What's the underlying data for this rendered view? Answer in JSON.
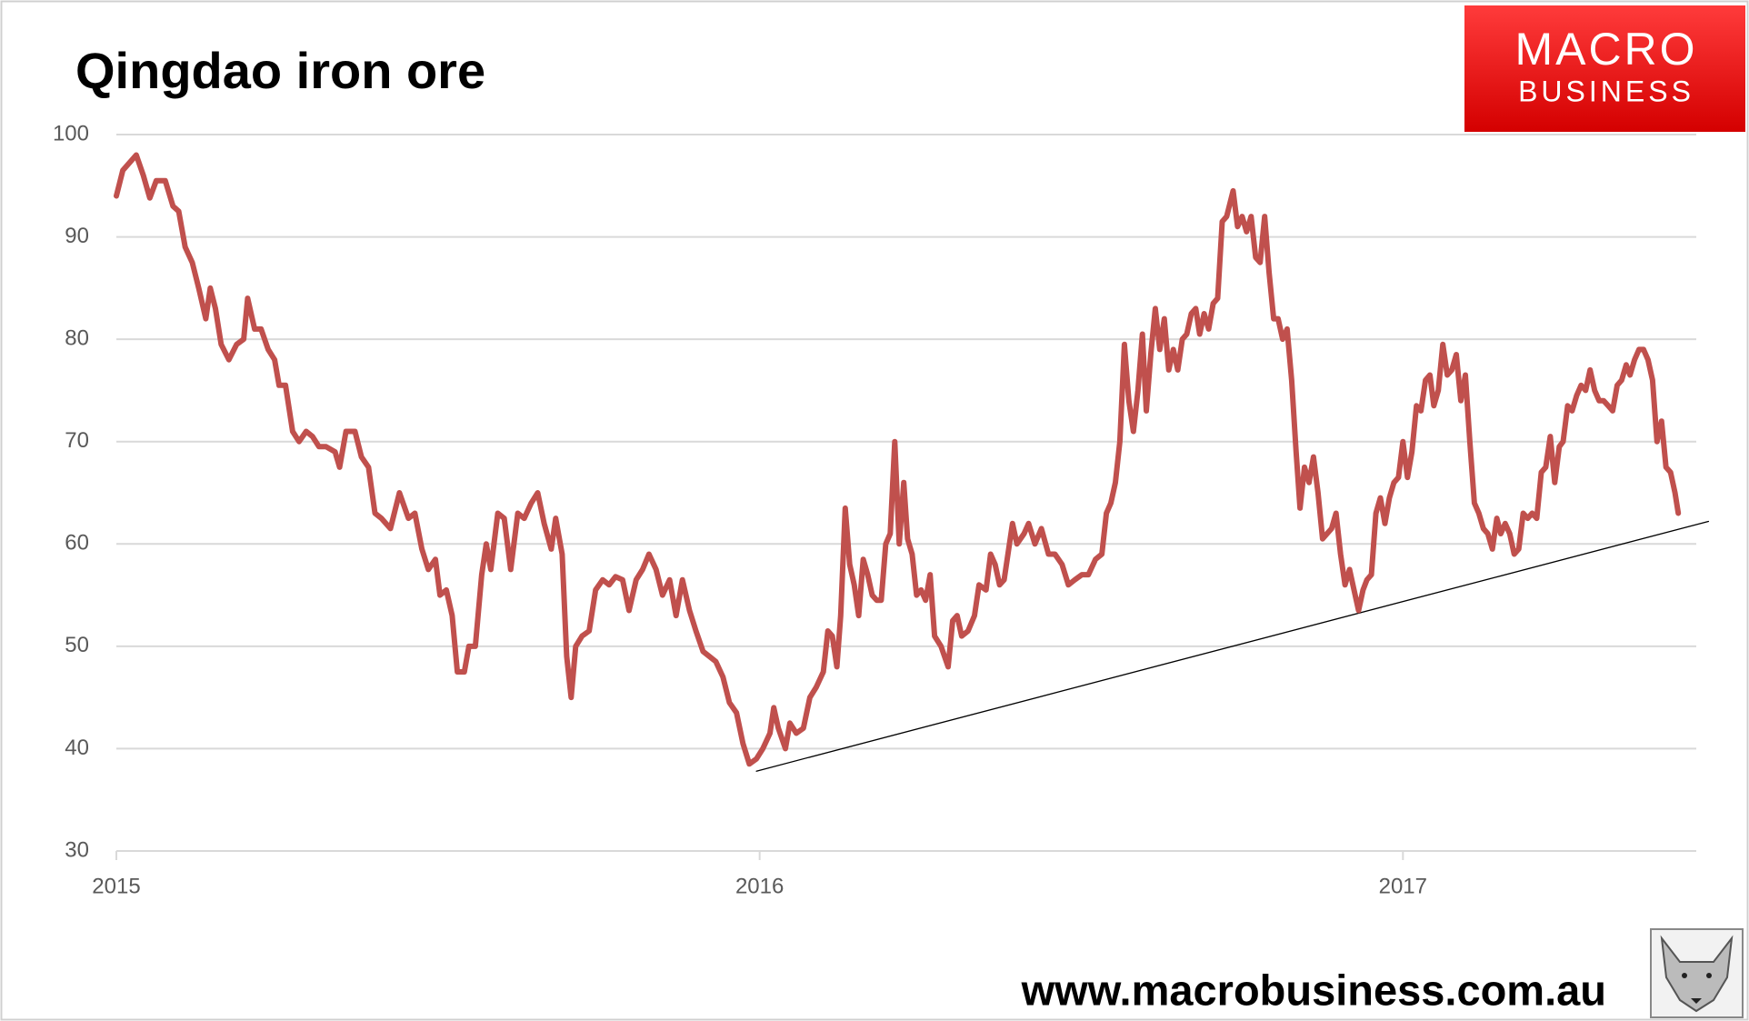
{
  "chart_data": {
    "type": "line",
    "title": "Qingdao iron ore",
    "x": [
      2015.0,
      2015.01,
      2015.031,
      2015.042,
      2015.052,
      2015.062,
      2015.076,
      2015.088,
      2015.097,
      2015.107,
      2015.118,
      2015.128,
      2015.139,
      2015.146,
      2015.154,
      2015.163,
      2015.175,
      2015.187,
      2015.198,
      2015.204,
      2015.215,
      2015.225,
      2015.236,
      2015.246,
      2015.253,
      2015.263,
      2015.274,
      2015.284,
      2015.295,
      2015.305,
      2015.315,
      2015.326,
      2015.34,
      2015.347,
      2015.357,
      2015.371,
      2015.381,
      2015.392,
      2015.402,
      2015.412,
      2015.426,
      2015.44,
      2015.454,
      2015.464,
      2015.475,
      2015.485,
      2015.496,
      2015.503,
      2015.513,
      2015.522,
      2015.53,
      2015.541,
      2015.548,
      2015.558,
      2015.568,
      2015.575,
      2015.582,
      2015.593,
      2015.603,
      2015.613,
      2015.624,
      2015.634,
      2015.645,
      2015.655,
      2015.665,
      2015.676,
      2015.683,
      2015.693,
      2015.7,
      2015.707,
      2015.714,
      2015.724,
      2015.735,
      2015.745,
      2015.756,
      2015.766,
      2015.776,
      2015.787,
      2015.797,
      2015.808,
      2015.818,
      2015.828,
      2015.839,
      2015.849,
      2015.86,
      2015.87,
      2015.88,
      2015.891,
      2015.901,
      2015.912,
      2015.922,
      2015.932,
      2015.943,
      2015.953,
      2015.964,
      2015.974,
      2015.984,
      2015.995,
      2016.005,
      2016.016,
      2016.022,
      2016.029,
      2016.04,
      2016.047,
      2016.057,
      2016.068,
      2016.078,
      2016.088,
      2016.099,
      2016.106,
      2016.113,
      2016.12,
      2016.126,
      2016.133,
      2016.14,
      2016.147,
      2016.154,
      2016.161,
      2016.168,
      2016.175,
      2016.182,
      2016.189,
      2016.196,
      2016.203,
      2016.21,
      2016.217,
      2016.224,
      2016.23,
      2016.237,
      2016.244,
      2016.251,
      2016.258,
      2016.265,
      2016.272,
      2016.282,
      2016.293,
      2016.3,
      2016.307,
      2016.314,
      2016.324,
      2016.334,
      2016.341,
      2016.352,
      2016.359,
      2016.366,
      2016.373,
      2016.38,
      2016.386,
      2016.393,
      2016.4,
      2016.411,
      2016.418,
      2016.428,
      2016.438,
      2016.449,
      2016.459,
      2016.47,
      2016.48,
      2016.49,
      2016.501,
      2016.511,
      2016.522,
      2016.532,
      2016.539,
      2016.546,
      2016.553,
      2016.56,
      2016.567,
      2016.574,
      2016.581,
      2016.588,
      2016.595,
      2016.601,
      2016.608,
      2016.615,
      2016.622,
      2016.629,
      2016.636,
      2016.643,
      2016.65,
      2016.657,
      2016.664,
      2016.671,
      2016.678,
      2016.684,
      2016.691,
      2016.698,
      2016.705,
      2016.712,
      2016.719,
      2016.726,
      2016.736,
      2016.743,
      2016.75,
      2016.757,
      2016.764,
      2016.771,
      2016.778,
      2016.785,
      2016.792,
      2016.799,
      2016.806,
      2016.813,
      2016.82,
      2016.827,
      2016.834,
      2016.84,
      2016.847,
      2016.854,
      2016.861,
      2016.868,
      2016.875,
      2016.882,
      2016.889,
      2016.896,
      2016.903,
      2016.91,
      2016.917,
      2016.924,
      2016.931,
      2016.938,
      2016.944,
      2016.951,
      2016.958,
      2016.965,
      2016.972,
      2016.979,
      2016.986,
      2016.993,
      2017.0,
      2017.007,
      2017.014,
      2017.021,
      2017.028,
      2017.035,
      2017.042,
      2017.048,
      2017.055,
      2017.062,
      2017.069,
      2017.076,
      2017.083,
      2017.09,
      2017.097,
      2017.104,
      2017.111,
      2017.118,
      2017.125,
      2017.132,
      2017.139,
      2017.146,
      2017.152,
      2017.159,
      2017.166,
      2017.173,
      2017.18,
      2017.187,
      2017.194,
      2017.201,
      2017.208,
      2017.215,
      2017.222,
      2017.229,
      2017.236,
      2017.243,
      2017.249,
      2017.256,
      2017.263,
      2017.27,
      2017.277,
      2017.284,
      2017.291,
      2017.298,
      2017.305,
      2017.312,
      2017.319,
      2017.326,
      2017.333,
      2017.34,
      2017.347,
      2017.353,
      2017.36,
      2017.367,
      2017.374,
      2017.381,
      2017.388,
      2017.395,
      2017.402,
      2017.409,
      2017.416,
      2017.423,
      2017.428
    ],
    "values": [
      94,
      96.5,
      98,
      96,
      93.8,
      95.5,
      95.5,
      93,
      92.5,
      89,
      87.5,
      85,
      82,
      85,
      83,
      79.5,
      78,
      79.5,
      80,
      84,
      81,
      81,
      79,
      78,
      75.5,
      75.5,
      71,
      70,
      71,
      70.5,
      69.5,
      69.5,
      69,
      67.5,
      71,
      71,
      68.5,
      67.5,
      63,
      62.5,
      61.5,
      65,
      62.5,
      63,
      59.5,
      57.5,
      58.5,
      55,
      55.5,
      53,
      47.5,
      47.5,
      50,
      50,
      57,
      60,
      57.5,
      63,
      62.5,
      57.5,
      63,
      62.5,
      64,
      65,
      62,
      59.5,
      62.5,
      59,
      49,
      45,
      50,
      51,
      51.5,
      55.5,
      56.5,
      56,
      56.8,
      56.5,
      53.5,
      56.5,
      57.5,
      59,
      57.5,
      55,
      56.5,
      53,
      56.5,
      53.5,
      51.5,
      49.5,
      49,
      48.5,
      47,
      44.5,
      43.5,
      40.5,
      38.5,
      39,
      40,
      41.5,
      44,
      42,
      40,
      42.5,
      41.5,
      42,
      45,
      46,
      47.5,
      51.5,
      51,
      48,
      53,
      63.5,
      58,
      56,
      53,
      58.5,
      57,
      55,
      54.5,
      54.5,
      60,
      61,
      70,
      60,
      66,
      60.5,
      59,
      55,
      55.5,
      54.5,
      57,
      51,
      50,
      48,
      52.5,
      53,
      51,
      51.5,
      53,
      56,
      55.5,
      59,
      58,
      56,
      56.5,
      59,
      62,
      60,
      61,
      62,
      60,
      61.5,
      59,
      59,
      58,
      56,
      56.5,
      57,
      57,
      58.5,
      59,
      63,
      64,
      66,
      70,
      79.5,
      74,
      71,
      75,
      80.5,
      73,
      78.5,
      83,
      79,
      82,
      77,
      79,
      77,
      80,
      80.5,
      82.5,
      83,
      80.5,
      82.5,
      81,
      83.5,
      84,
      91.5,
      92,
      94.5,
      91,
      92,
      90.5,
      92,
      88,
      87.5,
      92,
      86.5,
      82,
      82,
      80,
      81,
      76,
      69,
      63.5,
      67.5,
      66,
      68.5,
      65,
      60.5,
      61,
      61.5,
      63,
      59,
      56,
      57.5,
      55.5,
      53.5,
      55.5,
      56.5,
      57,
      63,
      64.5,
      62,
      64.5,
      66,
      66.5,
      70,
      66.5,
      69,
      73.5,
      73,
      76,
      76.5,
      73.5,
      75,
      79.5,
      76.5,
      77,
      78.5,
      74,
      76.5,
      70,
      64,
      63,
      61.5,
      61,
      59.5,
      62.5,
      61,
      62,
      61,
      59,
      59.5,
      63,
      62.5,
      63,
      62.5,
      67,
      67.5,
      70.5,
      66,
      69.5,
      70,
      73.5,
      73,
      74.5,
      75.5,
      75,
      77,
      75,
      74,
      74,
      73.5,
      73,
      75.5,
      76,
      77.5,
      76.5,
      78,
      79,
      79,
      78,
      76,
      70,
      72,
      67.5,
      67,
      65,
      63
    ],
    "color": "#c0504d",
    "trendline": {
      "x": [
        2015.995,
        2017.475
      ],
      "values": [
        37.8,
        62.2
      ],
      "color": "#000000"
    },
    "xlim": [
      2015,
      2017.456
    ],
    "xticks": [
      2015,
      2016,
      2017
    ],
    "ylim": [
      30,
      100
    ],
    "yticks": [
      30,
      40,
      50,
      60,
      70,
      80,
      90,
      100
    ],
    "grid": true
  },
  "logo": {
    "line1": "MACRO",
    "line2": "BUSINESS"
  },
  "url": "www.macrobusiness.com.au"
}
